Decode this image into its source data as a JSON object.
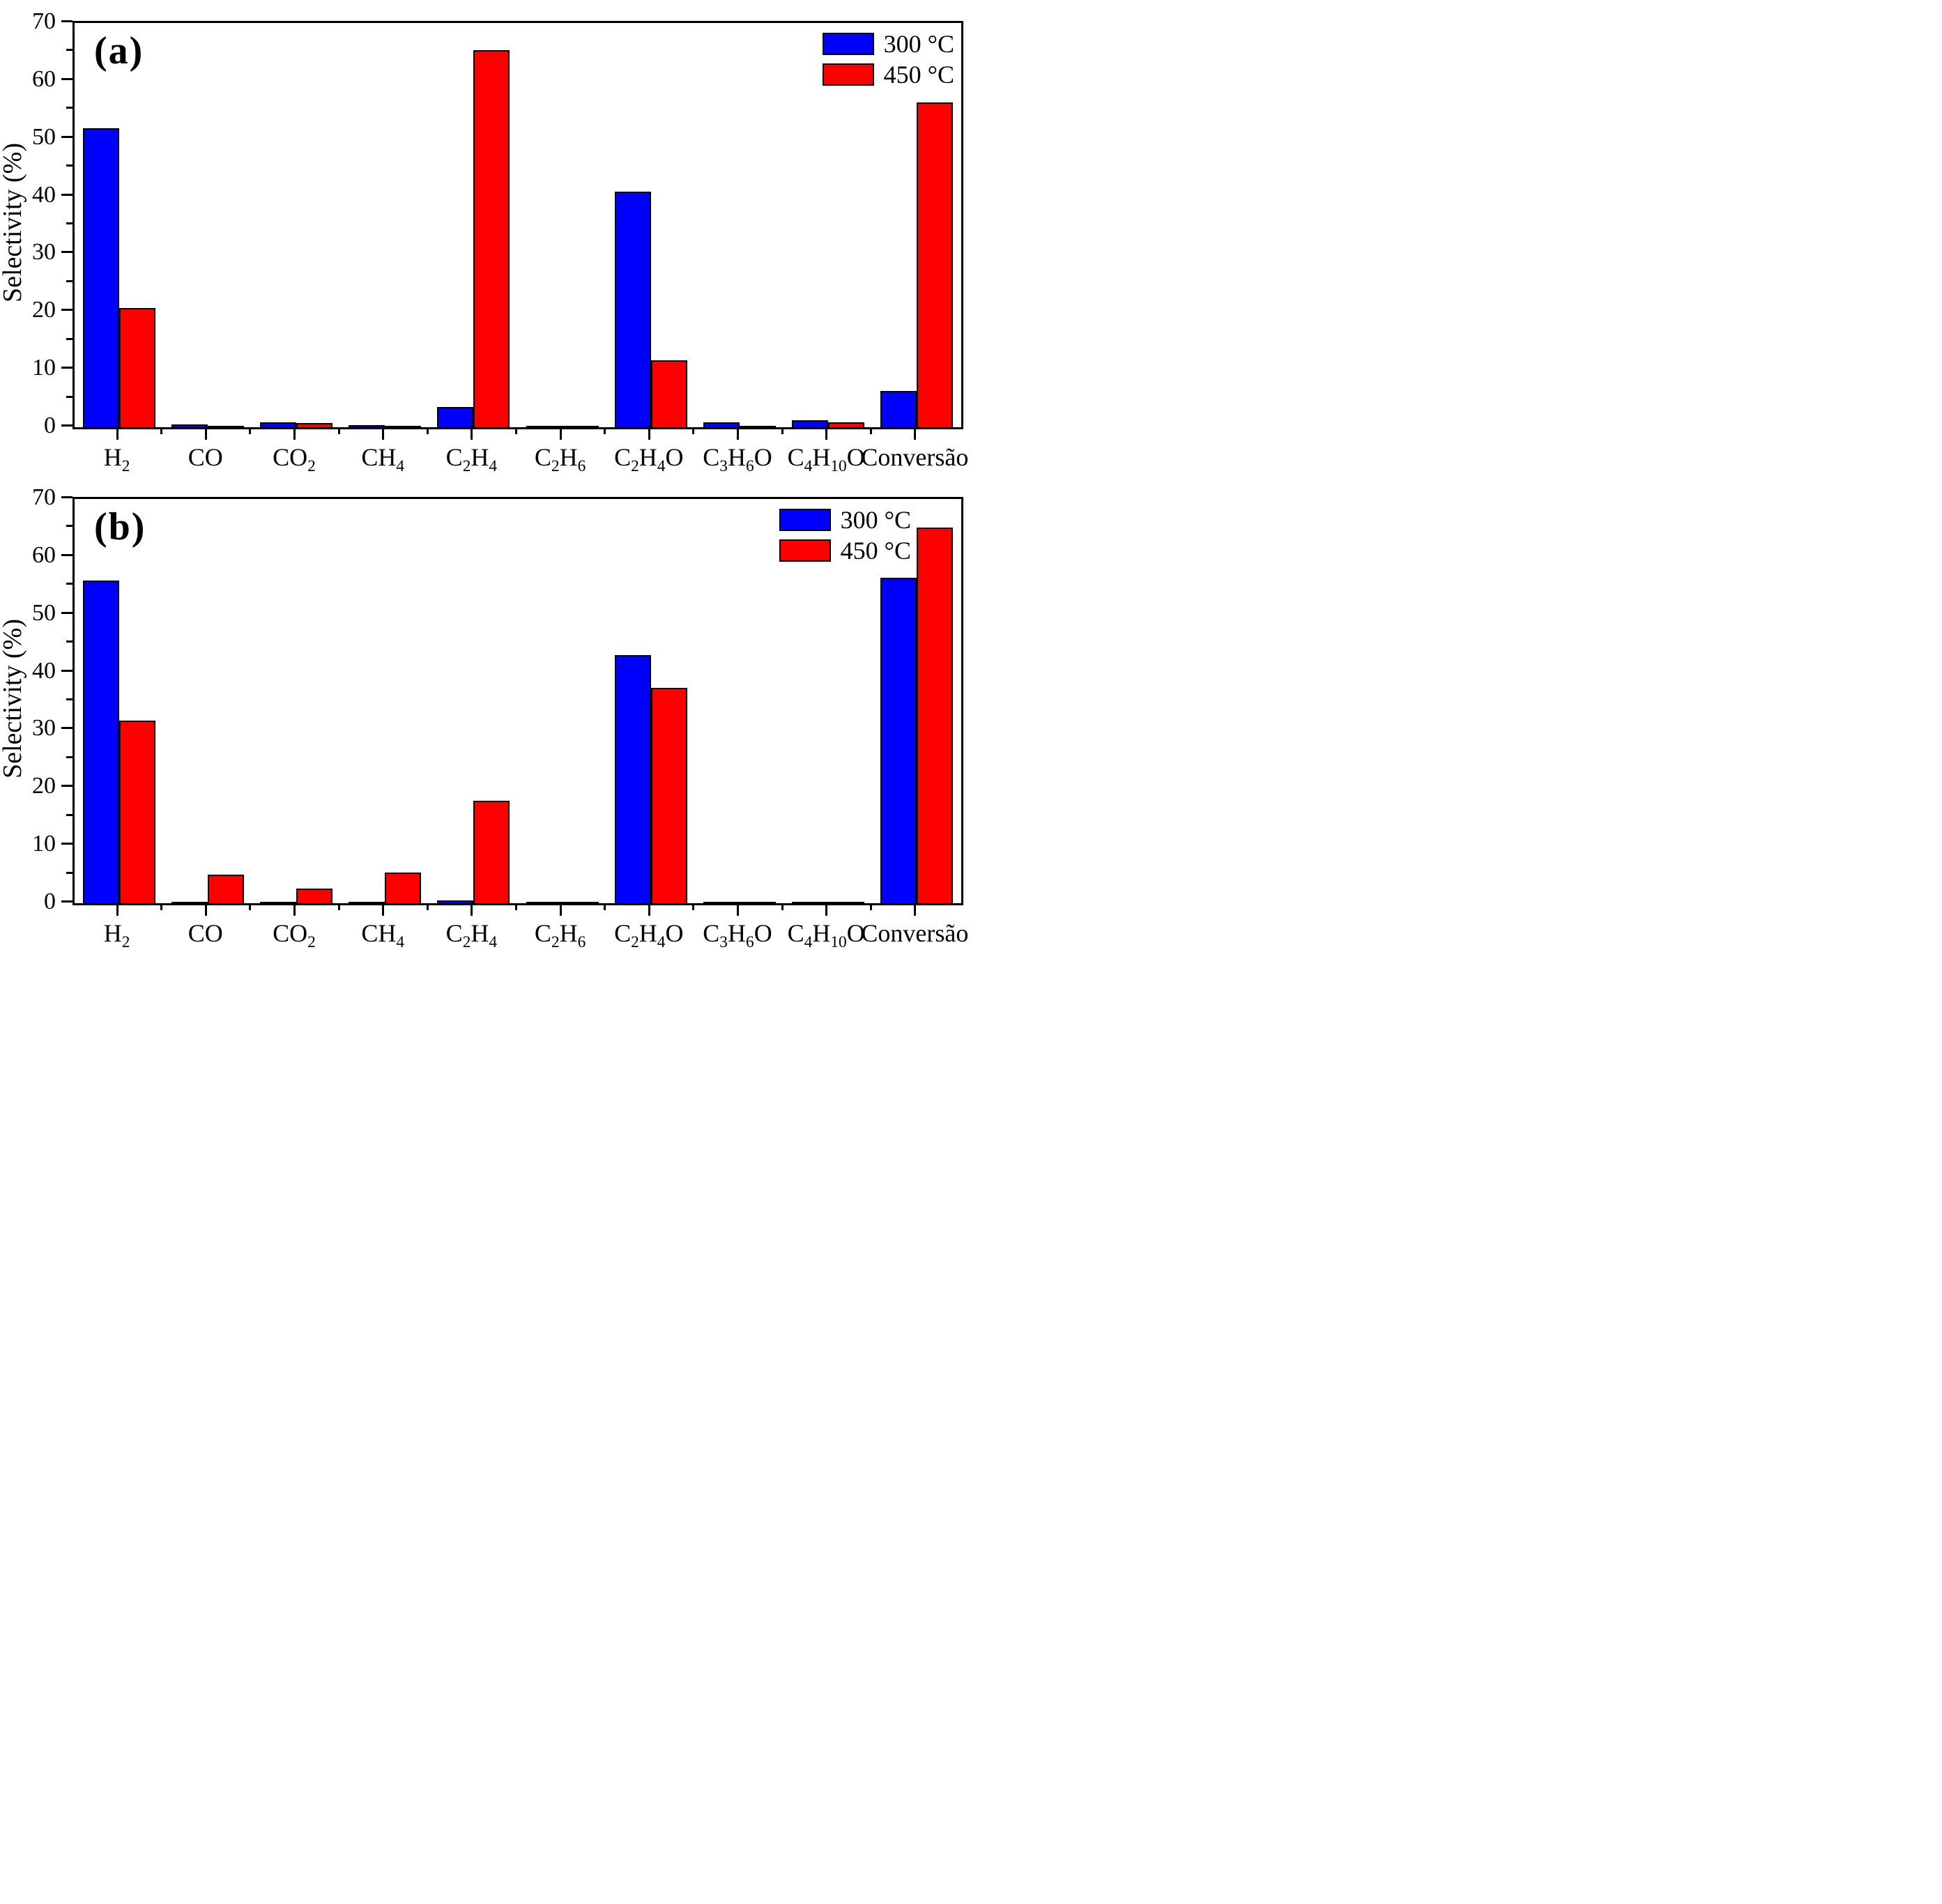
{
  "figure_title": "",
  "chart_data": [
    {
      "type": "bar",
      "panel_label": "(a)",
      "ylabel": "Selectivity (%)",
      "ylim": [
        0,
        70
      ],
      "ytick_step": 10,
      "ytick_minor_step": 5,
      "grid": false,
      "legend_position": "top-right-inside",
      "categories": [
        "H_2",
        "CO",
        "CO_2",
        "CH_4",
        "C_2H_4",
        "C_2H_6",
        "C_2H_4O",
        "C_3H_6O",
        "C_4H_10O",
        "Conversão"
      ],
      "series": [
        {
          "name": "300 °C",
          "color": "#0000fe",
          "values": [
            51.8,
            0.45,
            0.9,
            0.35,
            3.5,
            0.15,
            40.8,
            0.9,
            1.2,
            6.3
          ]
        },
        {
          "name": "450 °C",
          "color": "#fe0000",
          "values": [
            20.6,
            0.15,
            0.75,
            0.1,
            65.3,
            0.3,
            11.6,
            0.1,
            0.9,
            56.3
          ]
        }
      ]
    },
    {
      "type": "bar",
      "panel_label": "(b)",
      "ylabel": "Selectivity (%)",
      "ylim": [
        0,
        70
      ],
      "ytick_step": 10,
      "ytick_minor_step": 5,
      "grid": false,
      "legend_position": "top-right-inside",
      "categories": [
        "H_2",
        "CO",
        "CO_2",
        "CH_4",
        "C_2H_4",
        "C_2H_6",
        "C_2H_4O",
        "C_3H_6O",
        "C_4H_10O",
        "Conversão"
      ],
      "series": [
        {
          "name": "300 °C",
          "color": "#0000fe",
          "values": [
            55.9,
            0.1,
            0.05,
            0.1,
            0.5,
            0.1,
            43.0,
            0.15,
            0.05,
            56.4
          ]
        },
        {
          "name": "450 °C",
          "color": "#fe0000",
          "values": [
            31.6,
            4.9,
            2.5,
            5.3,
            17.8,
            0.3,
            37.3,
            0.3,
            0.05,
            65.1
          ]
        }
      ]
    }
  ],
  "colors": {
    "series_300": "#0000fe",
    "series_450": "#fe0000",
    "axis": "#000000",
    "background": "#ffffff"
  }
}
